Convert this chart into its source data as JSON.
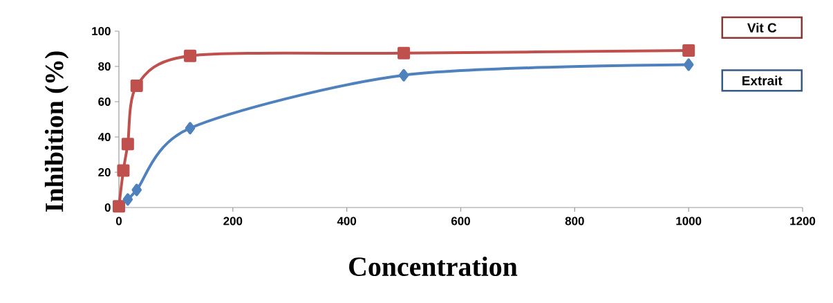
{
  "chart_data": {
    "type": "line",
    "xlabel": "Concentration",
    "ylabel": "Inhibition (%)",
    "xlim": [
      0,
      1200
    ],
    "xticks": [
      0,
      200,
      400,
      600,
      800,
      1000,
      1200
    ],
    "ylim": [
      0,
      100
    ],
    "yticks": [
      0,
      20,
      40,
      60,
      80,
      100
    ],
    "grid": false,
    "legend": false,
    "series": [
      {
        "name": "Vit C",
        "color": "#c0504d",
        "marker": "square",
        "x": [
          0,
          7.8,
          15.6,
          31.25,
          125,
          500,
          1000
        ],
        "values": [
          0.7,
          21,
          36,
          69,
          86,
          87.5,
          89
        ]
      },
      {
        "name": "Extrait",
        "color": "#4f81bd",
        "marker": "diamond",
        "x": [
          15.6,
          31.25,
          125,
          500,
          1000
        ],
        "values": [
          4.6,
          10,
          45,
          75,
          81
        ]
      }
    ]
  }
}
